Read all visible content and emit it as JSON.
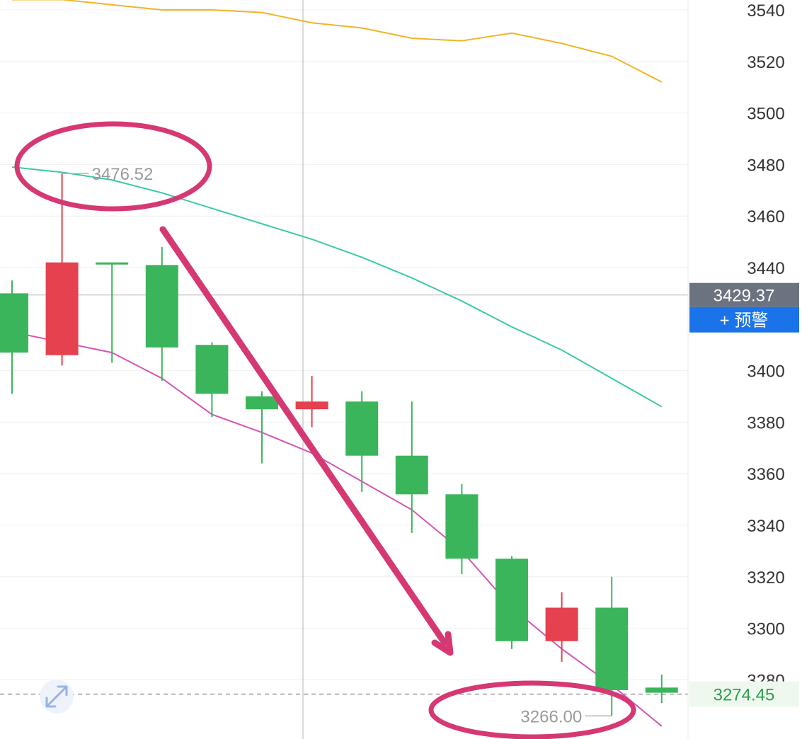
{
  "chart_data": {
    "type": "candlestick",
    "y_axis": {
      "ticks": [
        "3540",
        "3520",
        "3500",
        "3480",
        "3460",
        "3440",
        "3400",
        "3380",
        "3360",
        "3340",
        "3320",
        "3300",
        "3280"
      ],
      "tick_values": [
        3540,
        3520,
        3500,
        3480,
        3460,
        3440,
        3400,
        3380,
        3360,
        3340,
        3320,
        3300,
        3280
      ],
      "range": [
        3260,
        3544
      ],
      "position": "right"
    },
    "candles": [
      {
        "open": 3407,
        "high": 3435,
        "low": 3391,
        "close": 3430,
        "color": "#3bb55b"
      },
      {
        "open": 3406,
        "high": 3476.52,
        "low": 3402,
        "close": 3442,
        "color": "#e5414e"
      },
      {
        "open": 3442,
        "high": 3442,
        "low": 3403,
        "close": 3442,
        "color": "#3bb55b"
      },
      {
        "open": 3441,
        "high": 3448,
        "low": 3396,
        "close": 3409,
        "color": "#3bb55b"
      },
      {
        "open": 3410,
        "high": 3411,
        "low": 3382,
        "close": 3391,
        "color": "#3bb55b"
      },
      {
        "open": 3385,
        "high": 3392,
        "low": 3364,
        "close": 3390,
        "color": "#3bb55b"
      },
      {
        "open": 3385,
        "high": 3398,
        "low": 3378,
        "close": 3388,
        "color": "#e5414e"
      },
      {
        "open": 3388,
        "high": 3392,
        "low": 3353,
        "close": 3367,
        "color": "#3bb55b"
      },
      {
        "open": 3367,
        "high": 3388,
        "low": 3337,
        "close": 3352,
        "color": "#3bb55b"
      },
      {
        "open": 3352,
        "high": 3356,
        "low": 3321,
        "close": 3327,
        "color": "#3bb55b"
      },
      {
        "open": 3327,
        "high": 3328,
        "low": 3292,
        "close": 3295,
        "color": "#3bb55b"
      },
      {
        "open": 3295,
        "high": 3314,
        "low": 3287,
        "close": 3308,
        "color": "#e5414e"
      },
      {
        "open": 3308,
        "high": 3320,
        "low": 3266,
        "close": 3276,
        "color": "#3bb55b"
      },
      {
        "open": 3277,
        "high": 3282,
        "low": 3271,
        "close": 3275,
        "color": "#3bb55b"
      }
    ],
    "moving_averages": [
      {
        "color": "#f0b428",
        "values": [
          3544,
          3544,
          3542,
          3540,
          3540,
          3539,
          3535,
          3533,
          3529,
          3528,
          3531,
          3527,
          3522,
          3512
        ]
      },
      {
        "color": "#3cc9a8",
        "values": [
          3479,
          3477,
          3474,
          3469,
          3463,
          3457,
          3451,
          3444,
          3436,
          3427,
          3417,
          3408,
          3397,
          3386
        ]
      },
      {
        "color": "#d455b4",
        "values": [
          3415,
          3411,
          3407,
          3397,
          3383,
          3376,
          3368,
          3357,
          3346,
          3330,
          3308,
          3292,
          3278,
          3262
        ]
      }
    ],
    "high_label": "3476.52",
    "low_label": "3266.00",
    "crosshair_price_tag": "3429.37",
    "crosshair_price": 3429.37,
    "last_price_tag": "3274.45",
    "last_price": 3274.45,
    "grid": true
  },
  "ui": {
    "alert_button_label": "+ 预警",
    "expand_icon": "expand-diagonal-icon"
  },
  "colors": {
    "up": "#3bb55b",
    "down": "#e5414e",
    "annotation": "#d63874",
    "alert_blue": "#1a73e8",
    "tag_gray": "#6b7280"
  }
}
